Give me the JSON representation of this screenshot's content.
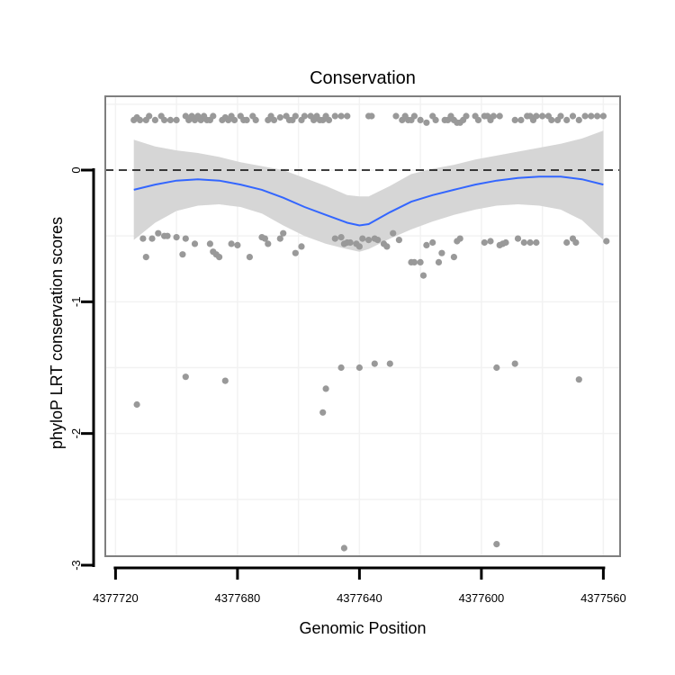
{
  "chart_data": {
    "type": "scatter",
    "title": "Conservation",
    "xlabel": "Genomic Position",
    "ylabel": "phyloP LRT conservation scores",
    "x_reversed": true,
    "xlim": [
      4377721,
      4377559
    ],
    "ylim": [
      -3.0,
      0.5
    ],
    "x_ticks": [
      4377720,
      4377680,
      4377640,
      4377600,
      4377560
    ],
    "x_tick_labels": [
      "4377720",
      "4377680",
      "4377640",
      "4377600",
      "4377560"
    ],
    "y_ticks": [
      0,
      -1,
      -2,
      -3
    ],
    "y_tick_labels": [
      "0",
      "-1",
      "-2",
      "-3"
    ],
    "grid": true,
    "reference_line": {
      "y": 0,
      "style": "dashed",
      "color": "#000000"
    },
    "colors": {
      "points": "#999999",
      "smooth": "#3366ff",
      "band": "#d4d4d4",
      "panel_border": "#7f7f7f",
      "grid": "#f2f2f2"
    },
    "points": [
      [
        4377714,
        0.38
      ],
      [
        4377713,
        0.4
      ],
      [
        4377712,
        0.38
      ],
      [
        4377710,
        0.38
      ],
      [
        4377709,
        0.41
      ],
      [
        4377707,
        0.38
      ],
      [
        4377705,
        0.41
      ],
      [
        4377704,
        0.38
      ],
      [
        4377702,
        0.38
      ],
      [
        4377700,
        0.38
      ],
      [
        4377697,
        0.41
      ],
      [
        4377696,
        0.38
      ],
      [
        4377695,
        0.41
      ],
      [
        4377694,
        0.38
      ],
      [
        4377693,
        0.41
      ],
      [
        4377692,
        0.38
      ],
      [
        4377691,
        0.41
      ],
      [
        4377690,
        0.38
      ],
      [
        4377689,
        0.38
      ],
      [
        4377688,
        0.41
      ],
      [
        4377685,
        0.38
      ],
      [
        4377684,
        0.4
      ],
      [
        4377683,
        0.38
      ],
      [
        4377682,
        0.41
      ],
      [
        4377681,
        0.38
      ],
      [
        4377679,
        0.41
      ],
      [
        4377678,
        0.38
      ],
      [
        4377677,
        0.38
      ],
      [
        4377675,
        0.41
      ],
      [
        4377674,
        0.38
      ],
      [
        4377670,
        0.38
      ],
      [
        4377669,
        0.41
      ],
      [
        4377668,
        0.38
      ],
      [
        4377666,
        0.4
      ],
      [
        4377664,
        0.41
      ],
      [
        4377663,
        0.38
      ],
      [
        4377662,
        0.38
      ],
      [
        4377661,
        0.41
      ],
      [
        4377659,
        0.38
      ],
      [
        4377658,
        0.41
      ],
      [
        4377656,
        0.41
      ],
      [
        4377655,
        0.38
      ],
      [
        4377654,
        0.41
      ],
      [
        4377653,
        0.38
      ],
      [
        4377652,
        0.38
      ],
      [
        4377651,
        0.41
      ],
      [
        4377650,
        0.38
      ],
      [
        4377648,
        0.41
      ],
      [
        4377646,
        0.41
      ],
      [
        4377644,
        0.41
      ],
      [
        4377637,
        0.41
      ],
      [
        4377636,
        0.41
      ],
      [
        4377628,
        0.41
      ],
      [
        4377626,
        0.38
      ],
      [
        4377625,
        0.41
      ],
      [
        4377624,
        0.38
      ],
      [
        4377623,
        0.38
      ],
      [
        4377622,
        0.41
      ],
      [
        4377620,
        0.38
      ],
      [
        4377618,
        0.36
      ],
      [
        4377616,
        0.41
      ],
      [
        4377615,
        0.38
      ],
      [
        4377612,
        0.38
      ],
      [
        4377611,
        0.38
      ],
      [
        4377610,
        0.41
      ],
      [
        4377609,
        0.38
      ],
      [
        4377608,
        0.36
      ],
      [
        4377607,
        0.36
      ],
      [
        4377606,
        0.38
      ],
      [
        4377605,
        0.41
      ],
      [
        4377602,
        0.41
      ],
      [
        4377601,
        0.38
      ],
      [
        4377599,
        0.41
      ],
      [
        4377598,
        0.41
      ],
      [
        4377597,
        0.38
      ],
      [
        4377596,
        0.41
      ],
      [
        4377594,
        0.41
      ],
      [
        4377589,
        0.38
      ],
      [
        4377587,
        0.38
      ],
      [
        4377585,
        0.41
      ],
      [
        4377584,
        0.41
      ],
      [
        4377583,
        0.38
      ],
      [
        4377582,
        0.41
      ],
      [
        4377580,
        0.41
      ],
      [
        4377578,
        0.41
      ],
      [
        4377577,
        0.38
      ],
      [
        4377575,
        0.38
      ],
      [
        4377574,
        0.41
      ],
      [
        4377572,
        0.38
      ],
      [
        4377570,
        0.41
      ],
      [
        4377568,
        0.38
      ],
      [
        4377566,
        0.41
      ],
      [
        4377564,
        0.41
      ],
      [
        4377562,
        0.41
      ],
      [
        4377560,
        0.41
      ],
      [
        4377711,
        -0.52
      ],
      [
        4377710,
        -0.66
      ],
      [
        4377708,
        -0.52
      ],
      [
        4377706,
        -0.48
      ],
      [
        4377704,
        -0.5
      ],
      [
        4377703,
        -0.5
      ],
      [
        4377700,
        -0.51
      ],
      [
        4377698,
        -0.64
      ],
      [
        4377697,
        -0.52
      ],
      [
        4377694,
        -0.56
      ],
      [
        4377689,
        -0.56
      ],
      [
        4377688,
        -0.62
      ],
      [
        4377687,
        -0.64
      ],
      [
        4377686,
        -0.66
      ],
      [
        4377682,
        -0.56
      ],
      [
        4377680,
        -0.57
      ],
      [
        4377676,
        -0.66
      ],
      [
        4377672,
        -0.51
      ],
      [
        4377671,
        -0.52
      ],
      [
        4377670,
        -0.56
      ],
      [
        4377666,
        -0.52
      ],
      [
        4377665,
        -0.48
      ],
      [
        4377661,
        -0.63
      ],
      [
        4377659,
        -0.58
      ],
      [
        4377648,
        -0.52
      ],
      [
        4377646,
        -0.51
      ],
      [
        4377645,
        -0.56
      ],
      [
        4377644,
        -0.55
      ],
      [
        4377643,
        -0.55
      ],
      [
        4377641,
        -0.56
      ],
      [
        4377640,
        -0.58
      ],
      [
        4377639,
        -0.52
      ],
      [
        4377637,
        -0.53
      ],
      [
        4377635,
        -0.52
      ],
      [
        4377634,
        -0.53
      ],
      [
        4377632,
        -0.56
      ],
      [
        4377631,
        -0.58
      ],
      [
        4377629,
        -0.48
      ],
      [
        4377627,
        -0.53
      ],
      [
        4377623,
        -0.7
      ],
      [
        4377622,
        -0.7
      ],
      [
        4377620,
        -0.7
      ],
      [
        4377618,
        -0.57
      ],
      [
        4377619,
        -0.8
      ],
      [
        4377616,
        -0.55
      ],
      [
        4377614,
        -0.7
      ],
      [
        4377613,
        -0.63
      ],
      [
        4377609,
        -0.66
      ],
      [
        4377608,
        -0.54
      ],
      [
        4377607,
        -0.52
      ],
      [
        4377599,
        -0.55
      ],
      [
        4377597,
        -0.54
      ],
      [
        4377594,
        -0.57
      ],
      [
        4377593,
        -0.56
      ],
      [
        4377592,
        -0.55
      ],
      [
        4377588,
        -0.52
      ],
      [
        4377586,
        -0.55
      ],
      [
        4377584,
        -0.55
      ],
      [
        4377582,
        -0.55
      ],
      [
        4377572,
        -0.55
      ],
      [
        4377570,
        -0.52
      ],
      [
        4377569,
        -0.55
      ],
      [
        4377559,
        -0.54
      ],
      [
        4377713,
        -1.78
      ],
      [
        4377697,
        -1.57
      ],
      [
        4377684,
        -1.6
      ],
      [
        4377652,
        -1.84
      ],
      [
        4377651,
        -1.66
      ],
      [
        4377646,
        -1.5
      ],
      [
        4377640,
        -1.5
      ],
      [
        4377635,
        -1.47
      ],
      [
        4377630,
        -1.47
      ],
      [
        4377595,
        -1.5
      ],
      [
        4377589,
        -1.47
      ],
      [
        4377568,
        -1.59
      ],
      [
        4377645,
        -2.87
      ],
      [
        4377595,
        -2.84
      ]
    ],
    "smooth_fit": {
      "x": [
        4377714,
        4377707,
        4377700,
        4377693,
        4377686,
        4377679,
        4377672,
        4377665,
        4377658,
        4377651,
        4377644,
        4377640,
        4377637,
        4377630,
        4377623,
        4377616,
        4377609,
        4377602,
        4377595,
        4377588,
        4377581,
        4377574,
        4377567,
        4377560
      ],
      "y": [
        -0.15,
        -0.11,
        -0.08,
        -0.07,
        -0.08,
        -0.11,
        -0.15,
        -0.21,
        -0.28,
        -0.34,
        -0.4,
        -0.42,
        -0.41,
        -0.32,
        -0.24,
        -0.19,
        -0.15,
        -0.11,
        -0.08,
        -0.06,
        -0.05,
        -0.05,
        -0.07,
        -0.11
      ],
      "lower": [
        -0.53,
        -0.4,
        -0.31,
        -0.27,
        -0.26,
        -0.28,
        -0.33,
        -0.42,
        -0.5,
        -0.56,
        -0.6,
        -0.62,
        -0.6,
        -0.52,
        -0.45,
        -0.39,
        -0.34,
        -0.3,
        -0.27,
        -0.26,
        -0.27,
        -0.3,
        -0.38,
        -0.53
      ],
      "upper": [
        0.23,
        0.18,
        0.15,
        0.13,
        0.1,
        0.06,
        0.03,
        0.0,
        -0.06,
        -0.12,
        -0.19,
        -0.2,
        -0.2,
        -0.12,
        -0.03,
        0.01,
        0.04,
        0.08,
        0.11,
        0.14,
        0.17,
        0.2,
        0.24,
        0.3
      ]
    }
  }
}
